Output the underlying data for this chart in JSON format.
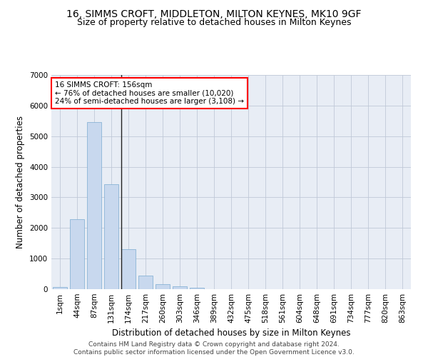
{
  "title1": "16, SIMMS CROFT, MIDDLETON, MILTON KEYNES, MK10 9GF",
  "title2": "Size of property relative to detached houses in Milton Keynes",
  "xlabel": "Distribution of detached houses by size in Milton Keynes",
  "ylabel": "Number of detached properties",
  "bar_color": "#c8d8ee",
  "bar_edge_color": "#7aaad0",
  "background_color": "#e8edf5",
  "annotation_text": "16 SIMMS CROFT: 156sqm\n← 76% of detached houses are smaller (10,020)\n24% of semi-detached houses are larger (3,108) →",
  "vline_color": "#222222",
  "categories": [
    "1sqm",
    "44sqm",
    "87sqm",
    "131sqm",
    "174sqm",
    "217sqm",
    "260sqm",
    "303sqm",
    "346sqm",
    "389sqm",
    "432sqm",
    "475sqm",
    "518sqm",
    "561sqm",
    "604sqm",
    "648sqm",
    "691sqm",
    "734sqm",
    "777sqm",
    "820sqm",
    "863sqm"
  ],
  "bar_heights": [
    75,
    2280,
    5450,
    3430,
    1310,
    440,
    155,
    90,
    55,
    0,
    0,
    0,
    0,
    0,
    0,
    0,
    0,
    0,
    0,
    0,
    0
  ],
  "ylim": [
    0,
    7000
  ],
  "yticks": [
    0,
    1000,
    2000,
    3000,
    4000,
    5000,
    6000,
    7000
  ],
  "footnote": "Contains HM Land Registry data © Crown copyright and database right 2024.\nContains public sector information licensed under the Open Government Licence v3.0.",
  "title1_fontsize": 10,
  "title2_fontsize": 9,
  "xlabel_fontsize": 8.5,
  "ylabel_fontsize": 8.5,
  "tick_fontsize": 7.5,
  "footnote_fontsize": 6.5,
  "vline_index": 3.58
}
